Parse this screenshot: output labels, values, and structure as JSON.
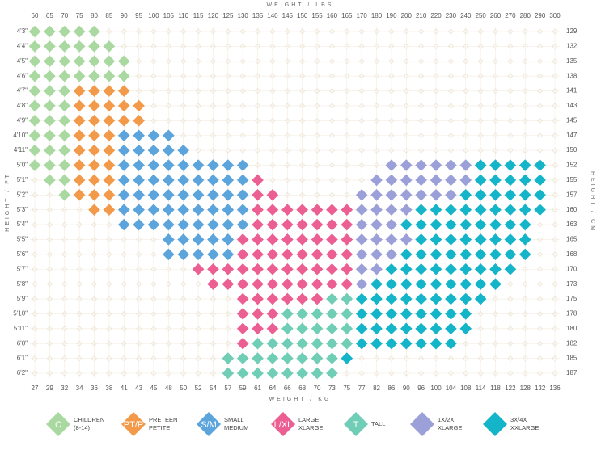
{
  "chart_data": {
    "type": "size-grid",
    "x_title": "WEIGHT / LBS",
    "x2_title": "WEIGHT / KG",
    "y_title": "HEIGHT / FT",
    "y2_title": "HEIGHT / CM",
    "lbs": [
      60,
      65,
      70,
      75,
      80,
      85,
      90,
      95,
      100,
      105,
      110,
      115,
      120,
      125,
      130,
      135,
      140,
      145,
      150,
      155,
      160,
      165,
      170,
      180,
      190,
      200,
      210,
      220,
      230,
      240,
      250,
      260,
      270,
      280,
      290,
      300
    ],
    "kg": [
      27,
      29,
      32,
      34,
      36,
      38,
      41,
      43,
      45,
      48,
      50,
      52,
      54,
      57,
      59,
      61,
      64,
      66,
      68,
      70,
      73,
      75,
      77,
      82,
      86,
      90,
      96,
      100,
      104,
      108,
      114,
      118,
      122,
      128,
      132,
      136
    ],
    "ft": [
      "4'3\"",
      "4'4\"",
      "4'5\"",
      "4'6\"",
      "4'7\"",
      "4'8\"",
      "4'9\"",
      "4'10\"",
      "4'11\"",
      "5'0\"",
      "5'1\"",
      "5'2\"",
      "5'3\"",
      "5'4\"",
      "5'5\"",
      "5'6\"",
      "5'7\"",
      "5'8\"",
      "5'9\"",
      "5'10\"",
      "5'11\"",
      "6'0\"",
      "6'1\"",
      "6'2\""
    ],
    "cm": [
      129,
      132,
      135,
      138,
      141,
      143,
      145,
      147,
      150,
      152,
      155,
      157,
      160,
      163,
      165,
      168,
      170,
      173,
      175,
      178,
      180,
      182,
      185,
      187
    ],
    "legend": [
      {
        "key": "C",
        "lines": [
          "CHILDREN",
          "(8-14)"
        ],
        "color": "#a9d9a1"
      },
      {
        "key": "PT/P",
        "lines": [
          "PRETEEN",
          "PETITE"
        ],
        "color": "#f29a4a"
      },
      {
        "key": "S/M",
        "lines": [
          "SMALL",
          "MEDIUM"
        ],
        "color": "#5ba4dc"
      },
      {
        "key": "L/XL",
        "lines": [
          "LARGE",
          "XLARGE"
        ],
        "color": "#ec5f93"
      },
      {
        "key": "T",
        "lines": [
          "TALL"
        ],
        "color": "#70cdb6"
      },
      {
        "lines": [
          "1X/2X",
          "XLARGE"
        ],
        "color": "#9ca0d9"
      },
      {
        "lines": [
          "3X/4X",
          "XXLARGE"
        ],
        "color": "#14b4c9"
      }
    ],
    "grid": [
      [
        [
          0,
          4,
          0
        ]
      ],
      [
        [
          0,
          5,
          0
        ]
      ],
      [
        [
          0,
          6,
          0
        ]
      ],
      [
        [
          0,
          6,
          0
        ]
      ],
      [
        [
          0,
          2,
          0
        ],
        [
          3,
          6,
          1
        ]
      ],
      [
        [
          0,
          2,
          0
        ],
        [
          3,
          7,
          1
        ]
      ],
      [
        [
          0,
          2,
          0
        ],
        [
          3,
          7,
          1
        ]
      ],
      [
        [
          0,
          2,
          0
        ],
        [
          3,
          5,
          1
        ],
        [
          6,
          9,
          2
        ]
      ],
      [
        [
          0,
          2,
          0
        ],
        [
          3,
          5,
          1
        ],
        [
          6,
          10,
          2
        ]
      ],
      [
        [
          0,
          2,
          0
        ],
        [
          3,
          5,
          1
        ],
        [
          6,
          14,
          2
        ],
        [
          24,
          29,
          5
        ],
        [
          30,
          34,
          6
        ]
      ],
      [
        [
          1,
          2,
          0
        ],
        [
          3,
          5,
          1
        ],
        [
          6,
          14,
          2
        ],
        [
          15,
          15,
          3
        ],
        [
          23,
          29,
          5
        ],
        [
          30,
          34,
          6
        ]
      ],
      [
        [
          2,
          2,
          0
        ],
        [
          3,
          5,
          1
        ],
        [
          6,
          14,
          2
        ],
        [
          15,
          16,
          3
        ],
        [
          22,
          28,
          5
        ],
        [
          29,
          34,
          6
        ]
      ],
      [
        [
          4,
          5,
          1
        ],
        [
          6,
          14,
          2
        ],
        [
          15,
          21,
          3
        ],
        [
          22,
          25,
          5
        ],
        [
          26,
          34,
          6
        ]
      ],
      [
        [
          6,
          14,
          2
        ],
        [
          15,
          21,
          3
        ],
        [
          22,
          24,
          5
        ],
        [
          25,
          33,
          6
        ]
      ],
      [
        [
          9,
          13,
          2
        ],
        [
          14,
          21,
          3
        ],
        [
          22,
          25,
          5
        ],
        [
          26,
          33,
          6
        ]
      ],
      [
        [
          9,
          13,
          2
        ],
        [
          14,
          21,
          3
        ],
        [
          22,
          24,
          5
        ],
        [
          25,
          33,
          6
        ]
      ],
      [
        [
          11,
          21,
          3
        ],
        [
          22,
          23,
          5
        ],
        [
          24,
          32,
          6
        ]
      ],
      [
        [
          12,
          21,
          3
        ],
        [
          22,
          22,
          5
        ],
        [
          23,
          31,
          6
        ]
      ],
      [
        [
          14,
          19,
          3
        ],
        [
          20,
          21,
          4
        ],
        [
          22,
          30,
          6
        ]
      ],
      [
        [
          14,
          16,
          3
        ],
        [
          17,
          21,
          4
        ],
        [
          22,
          29,
          6
        ]
      ],
      [
        [
          14,
          16,
          3
        ],
        [
          17,
          21,
          4
        ],
        [
          22,
          29,
          6
        ]
      ],
      [
        [
          14,
          14,
          3
        ],
        [
          15,
          21,
          4
        ],
        [
          22,
          28,
          6
        ]
      ],
      [
        [
          13,
          20,
          4
        ],
        [
          21,
          21,
          6
        ]
      ],
      [
        [
          13,
          20,
          4
        ]
      ]
    ]
  }
}
